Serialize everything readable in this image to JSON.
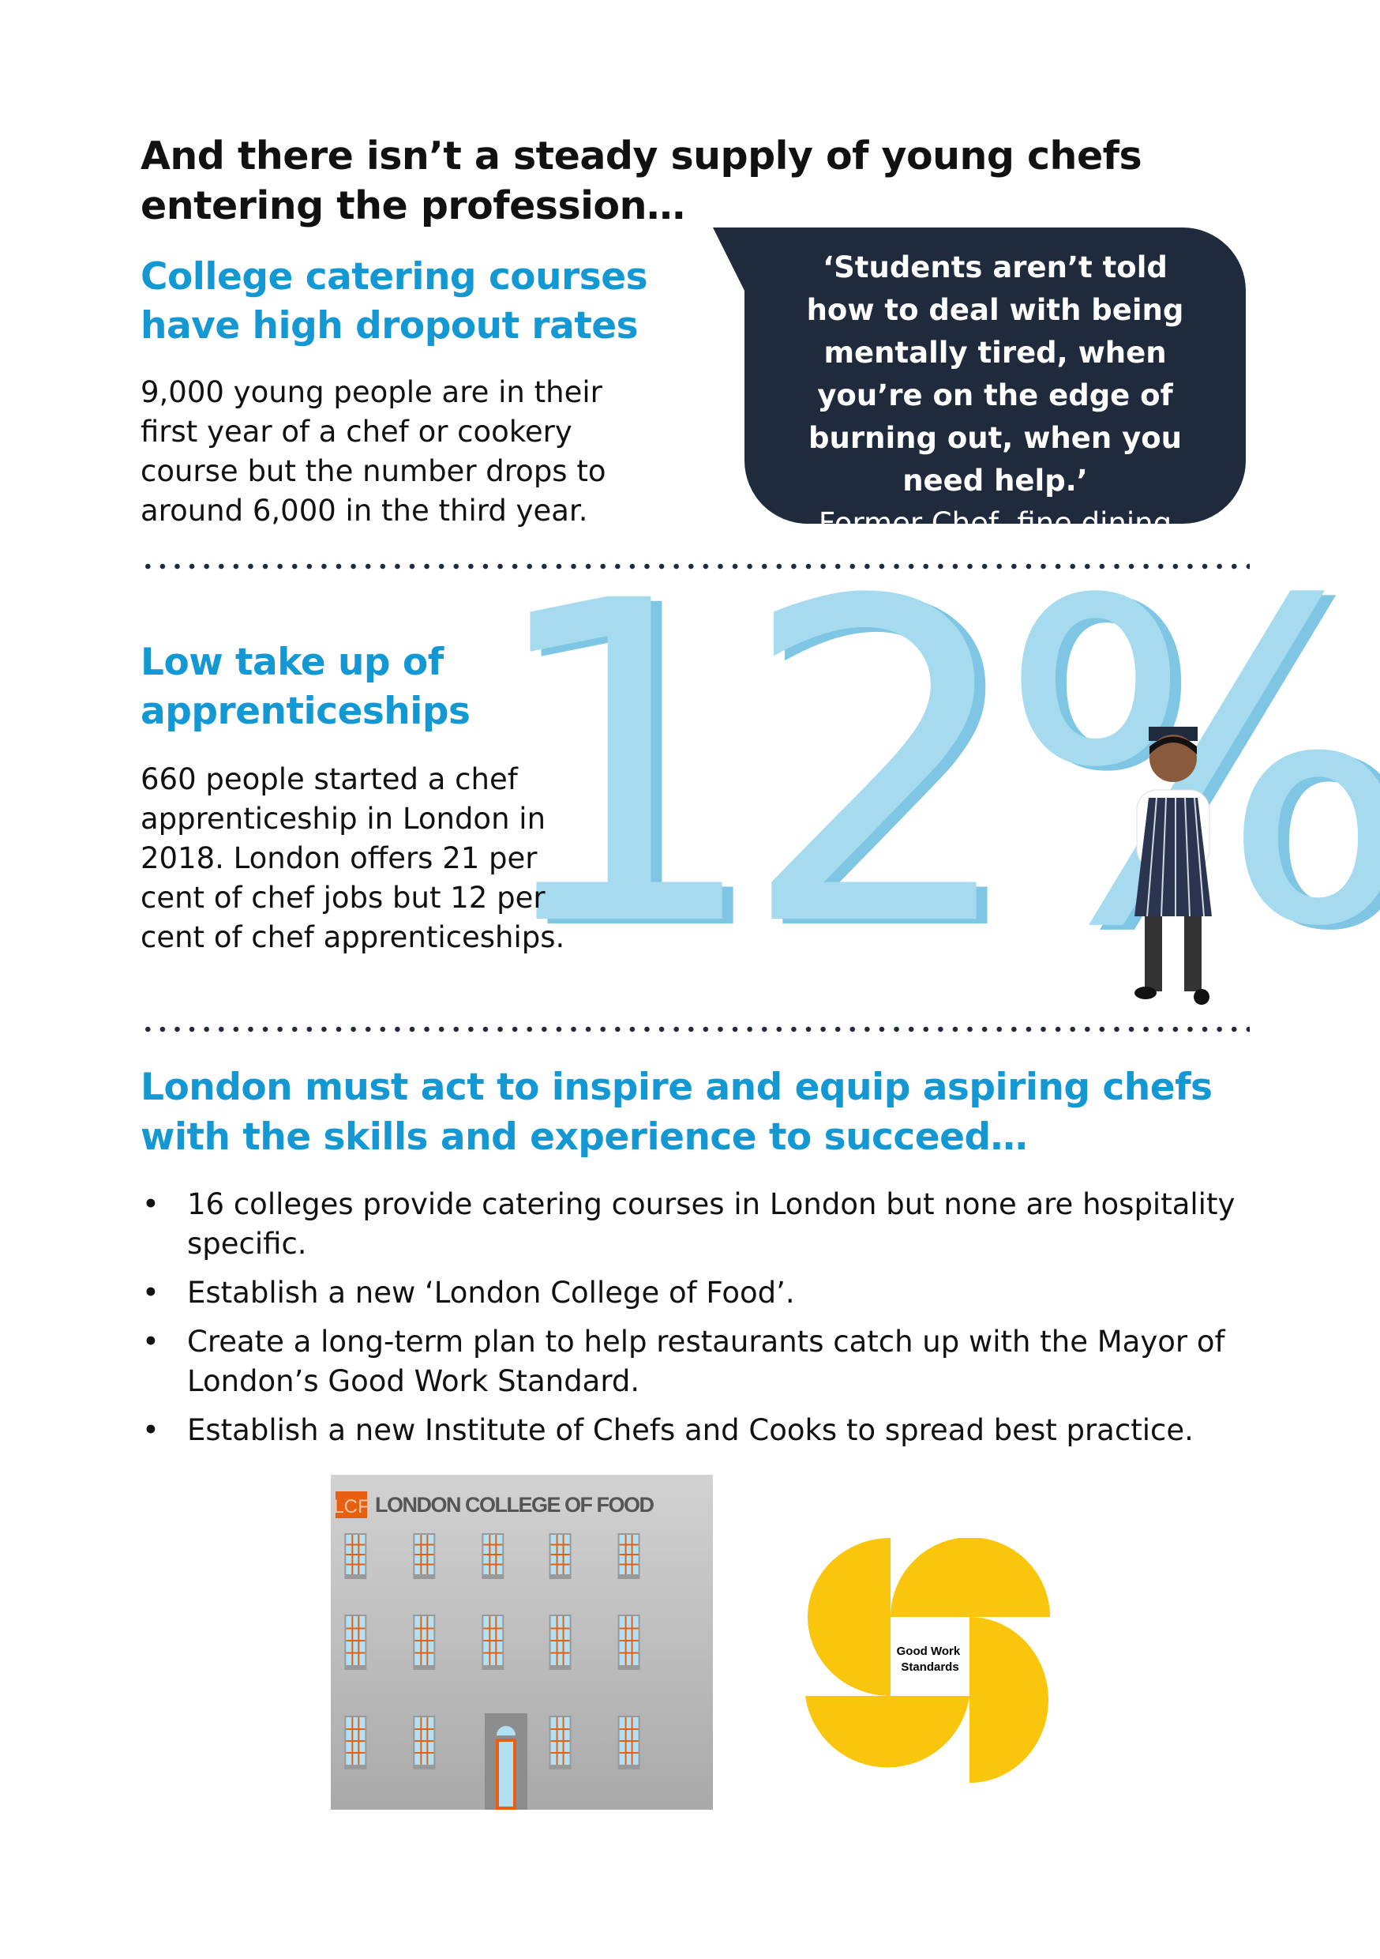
{
  "heading": "And there isn’t a steady supply of young chefs entering the profession…",
  "section1": {
    "title": "College catering courses have high dropout rates",
    "body": "9,000 young people are in their first year of a chef or cookery course but the number drops to around 6,000 in the third year."
  },
  "quote": {
    "text": "‘Students aren’t told how to deal with being mentally tired, when you’re on the edge of burning out, when you need help.’",
    "attribution": "Former Chef, fine dining"
  },
  "section2": {
    "title": "Low take up of apprenticeships",
    "body": "660 people started a chef apprenticeship in London in 2018. London offers 21 per cent of chef jobs but 12 per cent of chef apprenticeships.",
    "big_stat": "12%"
  },
  "section3": {
    "title": "London must act to inspire and equip aspiring chefs with the skills and experience to succeed…",
    "bullet_symbol": "•",
    "bullets": [
      "16 colleges provide catering courses in London but none are hospitality specific.",
      "Establish a new ‘London College of Food’.",
      "Create a long-term plan to help restaurants catch up with the Mayor of London’s Good Work Standard.",
      "Establish a new Institute of Chefs and Cooks to spread best practice."
    ]
  },
  "building": {
    "badge": "LCF",
    "sign": "LONDON COLLEGE OF FOOD"
  },
  "logo": {
    "text": "Good Work Standards"
  },
  "colors": {
    "accent": "#1398d3",
    "bubble": "#1f2a3c",
    "stat": "#a6dbef",
    "orange": "#e8600f",
    "yellow": "#f9c60d"
  }
}
